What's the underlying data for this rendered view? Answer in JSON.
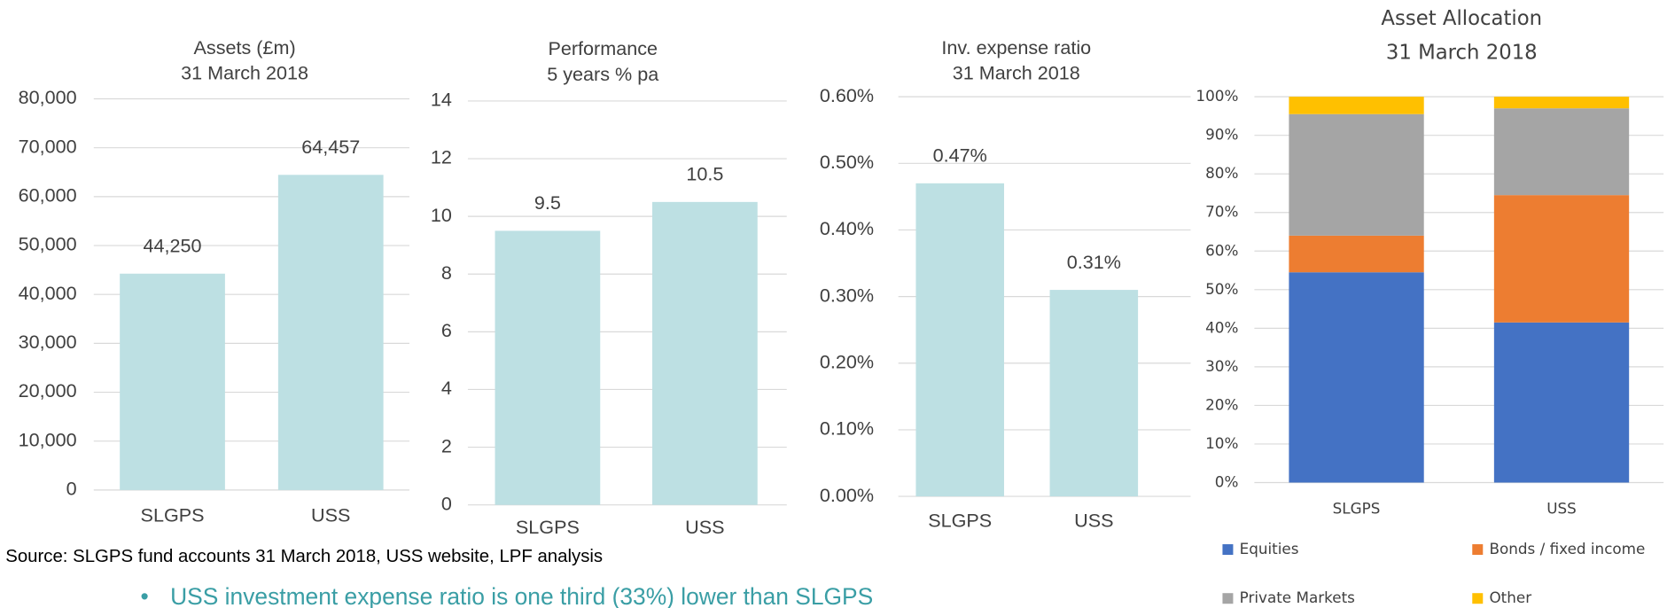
{
  "chart_data": [
    {
      "type": "bar",
      "title": "Assets (£m)",
      "subtitle": "31 March 2018",
      "categories": [
        "SLGPS",
        "USS"
      ],
      "values": [
        44250,
        64457
      ],
      "value_labels": [
        "44,250",
        "64,457"
      ],
      "color": "#bde0e3",
      "ylim": [
        0,
        80000
      ],
      "yticks": [
        0,
        {
          "value": 10000,
          "label": "10,000"
        },
        {
          "value": 20000,
          "label": "20,000"
        },
        {
          "value": 30000,
          "label": "30,000"
        },
        {
          "value": 40000,
          "label": "40,000"
        },
        {
          "value": 50000,
          "label": "50,000"
        },
        {
          "value": 60000,
          "label": "60,000"
        },
        {
          "value": 70000,
          "label": "70,000"
        },
        {
          "value": 80000,
          "label": "80,000"
        }
      ],
      "grid": true
    },
    {
      "type": "bar",
      "title": "Performance",
      "subtitle": "5 years % pa",
      "categories": [
        "SLGPS",
        "USS"
      ],
      "values": [
        9.5,
        10.5
      ],
      "color": "#bde0e3",
      "ylim": [
        0,
        14
      ],
      "yticks": [
        0,
        2,
        4,
        6,
        8,
        10,
        12,
        14
      ],
      "grid": true
    },
    {
      "type": "bar",
      "title": "Inv. expense ratio",
      "subtitle": "31 March 2018",
      "categories": [
        "SLGPS",
        "USS"
      ],
      "values": [
        0.47,
        0.31
      ],
      "value_labels": [
        "0.47%",
        "0.31%"
      ],
      "color": "#bde0e3",
      "ylim": [
        0,
        0.6
      ],
      "yticks": [
        {
          "value": 0,
          "label": "0.00%"
        },
        {
          "value": 0.1,
          "label": "0.10%"
        },
        {
          "value": 0.2,
          "label": "0.20%"
        },
        {
          "value": 0.3,
          "label": "0.30%"
        },
        {
          "value": 0.4,
          "label": "0.40%"
        },
        {
          "value": 0.5,
          "label": "0.50%"
        },
        {
          "value": 0.6,
          "label": "0.60%"
        }
      ],
      "grid": true
    },
    {
      "type": "stacked_bar",
      "title": "Asset Allocation",
      "subtitle": "31 March 2018",
      "categories": [
        "SLGPS",
        "USS"
      ],
      "series": [
        {
          "name": "Equities",
          "color": "#4472c4",
          "values": [
            54.5,
            41.5
          ]
        },
        {
          "name": "Bonds / fixed income",
          "color": "#ed7d31",
          "values": [
            9.5,
            33
          ]
        },
        {
          "name": "Private Markets",
          "color": "#a5a5a5",
          "values": [
            31.5,
            22.5
          ]
        },
        {
          "name": "Other",
          "color": "#ffc000",
          "values": [
            4.5,
            3
          ]
        }
      ],
      "ylim": [
        0,
        100
      ],
      "yticks": [
        {
          "value": 0,
          "label": "0%"
        },
        {
          "value": 10,
          "label": "10%"
        },
        {
          "value": 20,
          "label": "20%"
        },
        {
          "value": 30,
          "label": "30%"
        },
        {
          "value": 40,
          "label": "40%"
        },
        {
          "value": 50,
          "label": "50%"
        },
        {
          "value": 60,
          "label": "60%"
        },
        {
          "value": 70,
          "label": "70%"
        },
        {
          "value": 80,
          "label": "80%"
        },
        {
          "value": 90,
          "label": "90%"
        },
        {
          "value": 100,
          "label": "100%"
        }
      ],
      "grid": true,
      "legend": "bottom"
    }
  ],
  "source": "Source: SLGPS fund accounts 31 March 2018, USS website, LPF analysis",
  "bullets": [
    "USS investment expense ratio is one third (33%) lower than SLGPS"
  ]
}
